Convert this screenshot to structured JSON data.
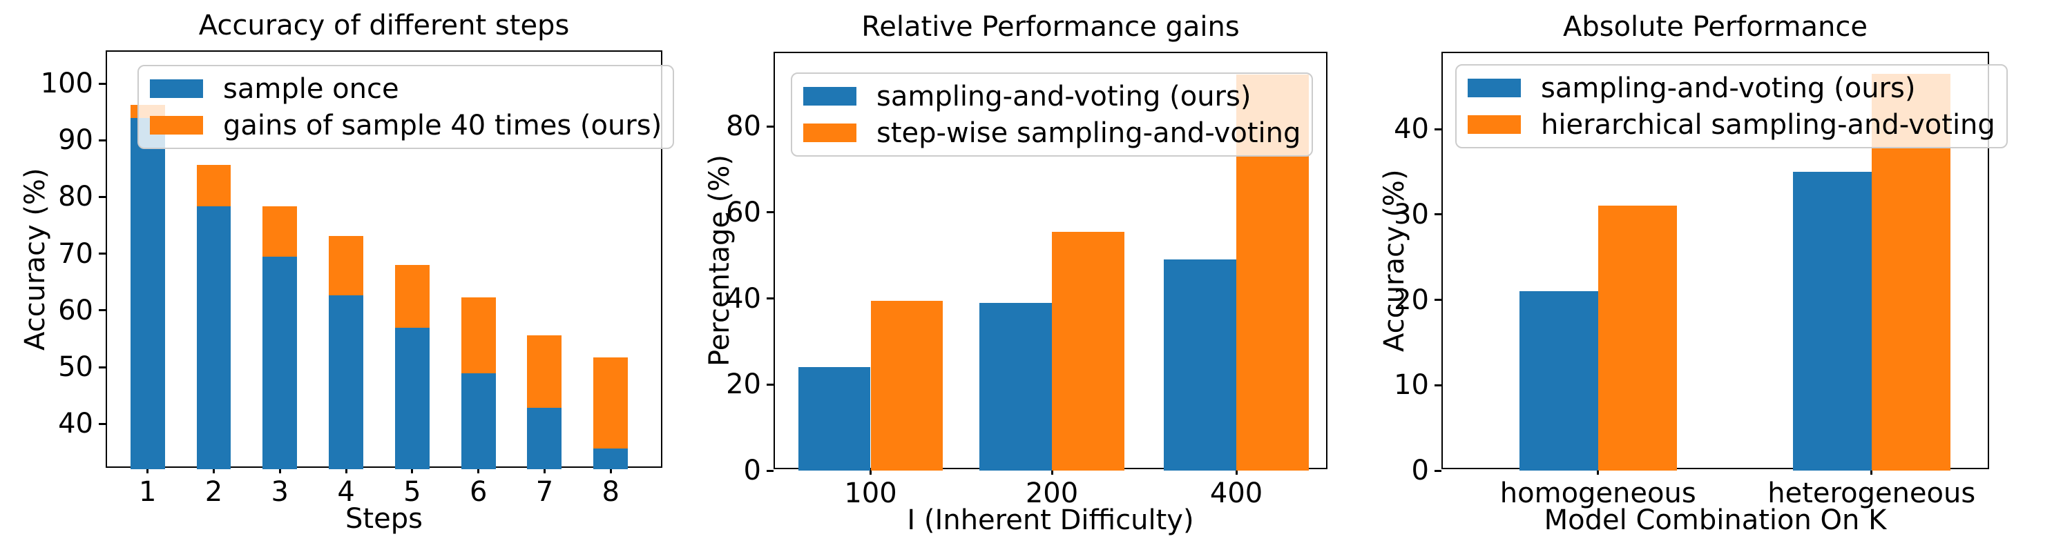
{
  "figure": {
    "background": "#ffffff",
    "accent_blue": "#1f77b4",
    "accent_orange": "#ff7f0e"
  },
  "chart_data": [
    {
      "type": "bar",
      "subtype": "stacked",
      "title": "Accuracy of different steps",
      "xlabel": "Steps",
      "ylabel": "Accuracy (%)",
      "categories": [
        "1",
        "2",
        "3",
        "4",
        "5",
        "6",
        "7",
        "8"
      ],
      "series": [
        {
          "name": "sample once",
          "color": "#1f77b4",
          "values": [
            93.9,
            78.4,
            69.5,
            62.6,
            56.9,
            48.9,
            42.8,
            35.6
          ]
        },
        {
          "name": "gains of sample 40 times (ours)",
          "color": "#ff7f0e",
          "values": [
            2.3,
            7.2,
            8.9,
            10.5,
            11.1,
            13.4,
            12.8,
            16.1
          ]
        }
      ],
      "stacked_totals": [
        96.2,
        85.6,
        78.4,
        73.1,
        68.0,
        62.3,
        55.6,
        51.7
      ],
      "ylim": [
        32,
        105.6
      ],
      "yticks": [
        40,
        50,
        60,
        70,
        80,
        90,
        100
      ],
      "legend_position": "upper-left",
      "grid": false
    },
    {
      "type": "bar",
      "subtype": "grouped",
      "title": "Relative Performance gains",
      "xlabel": "I (Inherent Difficulty)",
      "ylabel": "Percentage (%)",
      "categories": [
        "100",
        "200",
        "400"
      ],
      "series": [
        {
          "name": "sampling-and-voting (ours)",
          "color": "#1f77b4",
          "values": [
            24,
            39,
            49
          ]
        },
        {
          "name": "step-wise sampling-and-voting",
          "color": "#ff7f0e",
          "values": [
            39.5,
            55.5,
            92
          ]
        }
      ],
      "ylim": [
        0,
        97
      ],
      "yticks": [
        0,
        20,
        40,
        60,
        80
      ],
      "legend_position": "upper-left",
      "grid": false
    },
    {
      "type": "bar",
      "subtype": "grouped",
      "title": "Absolute Performance",
      "xlabel": "Model Combination On K",
      "ylabel": "Accuracy (%)",
      "categories": [
        "homogeneous",
        "heterogeneous"
      ],
      "series": [
        {
          "name": "sampling-and-voting (ours)",
          "color": "#1f77b4",
          "values": [
            21,
            35
          ]
        },
        {
          "name": "hierarchical sampling-and-voting",
          "color": "#ff7f0e",
          "values": [
            31,
            46.5
          ]
        }
      ],
      "ylim": [
        0,
        48.9
      ],
      "yticks": [
        0,
        10,
        20,
        30,
        40
      ],
      "legend_position": "upper-left",
      "grid": false
    }
  ]
}
